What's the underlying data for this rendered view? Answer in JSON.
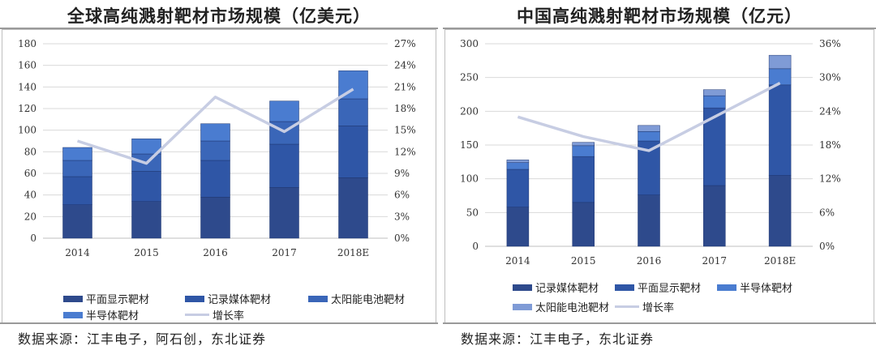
{
  "colors": {
    "flat_display": "#2e4a8c",
    "recording": "#2f56a6",
    "solar": "#3a66b8",
    "semiconductor": "#4a7cd0",
    "solar_light": "#7f9bd6",
    "growth_line": "#c7cde3"
  },
  "left": {
    "title": "全球高纯溅射靶材市场规模（亿美元）",
    "source": "数据来源：江丰电子，阿石创，东北证券",
    "legend": [
      "平面显示靶材",
      "记录媒体靶材",
      "太阳能电池靶材",
      "半导体靶材",
      "增长率"
    ],
    "chart_data": {
      "type": "bar",
      "stacked": true,
      "categories": [
        "2014",
        "2015",
        "2016",
        "2017",
        "2018E"
      ],
      "series": [
        {
          "name": "平面显示靶材",
          "values": [
            31,
            34,
            38,
            47,
            56
          ],
          "color_key": "flat_display"
        },
        {
          "name": "记录媒体靶材",
          "values": [
            26,
            28,
            34,
            40,
            48
          ],
          "color_key": "recording"
        },
        {
          "name": "太阳能电池靶材",
          "values": [
            15,
            16,
            18,
            21,
            25
          ],
          "color_key": "solar"
        },
        {
          "name": "半导体靶材",
          "values": [
            12,
            14,
            16,
            19,
            26
          ],
          "color_key": "semiconductor"
        }
      ],
      "line": {
        "name": "增长率",
        "values": [
          13.5,
          10.4,
          19.6,
          14.8,
          20.7
        ],
        "unit": "%"
      },
      "ylim": [
        0,
        180
      ],
      "yticks": [
        "0",
        "20",
        "40",
        "60",
        "80",
        "100",
        "120",
        "140",
        "160",
        "180"
      ],
      "y2lim": [
        0,
        27
      ],
      "y2ticks": [
        "0%",
        "3%",
        "6%",
        "9%",
        "12%",
        "15%",
        "18%",
        "21%",
        "24%",
        "27%"
      ]
    }
  },
  "right": {
    "title": "中国高纯溅射靶材市场规模（亿元）",
    "source": "数据来源：江丰电子，东北证券",
    "legend": [
      "记录媒体靶材",
      "平面显示靶材",
      "半导体靶材",
      "太阳能电池靶材",
      "增长率"
    ],
    "chart_data": {
      "type": "bar",
      "stacked": true,
      "categories": [
        "2014",
        "2015",
        "2016",
        "2017",
        "2018E"
      ],
      "series": [
        {
          "name": "记录媒体靶材",
          "values": [
            58,
            65,
            76,
            90,
            105
          ],
          "color_key": "flat_display"
        },
        {
          "name": "平面显示靶材",
          "values": [
            56,
            68,
            80,
            115,
            134
          ],
          "color_key": "recording"
        },
        {
          "name": "半导体靶材",
          "values": [
            10,
            16,
            14,
            18,
            24
          ],
          "color_key": "semiconductor"
        },
        {
          "name": "太阳能电池靶材",
          "values": [
            4,
            5,
            9,
            9,
            20
          ],
          "color_key": "solar_light"
        }
      ],
      "line": {
        "name": "增长率",
        "values": [
          23,
          19.5,
          17,
          23,
          29
        ],
        "unit": "%"
      },
      "ylim": [
        0,
        300
      ],
      "yticks": [
        "0",
        "50",
        "100",
        "150",
        "200",
        "250",
        "300"
      ],
      "y2lim": [
        0,
        36
      ],
      "y2ticks": [
        "0%",
        "6%",
        "12%",
        "18%",
        "24%",
        "30%",
        "36%"
      ]
    }
  }
}
